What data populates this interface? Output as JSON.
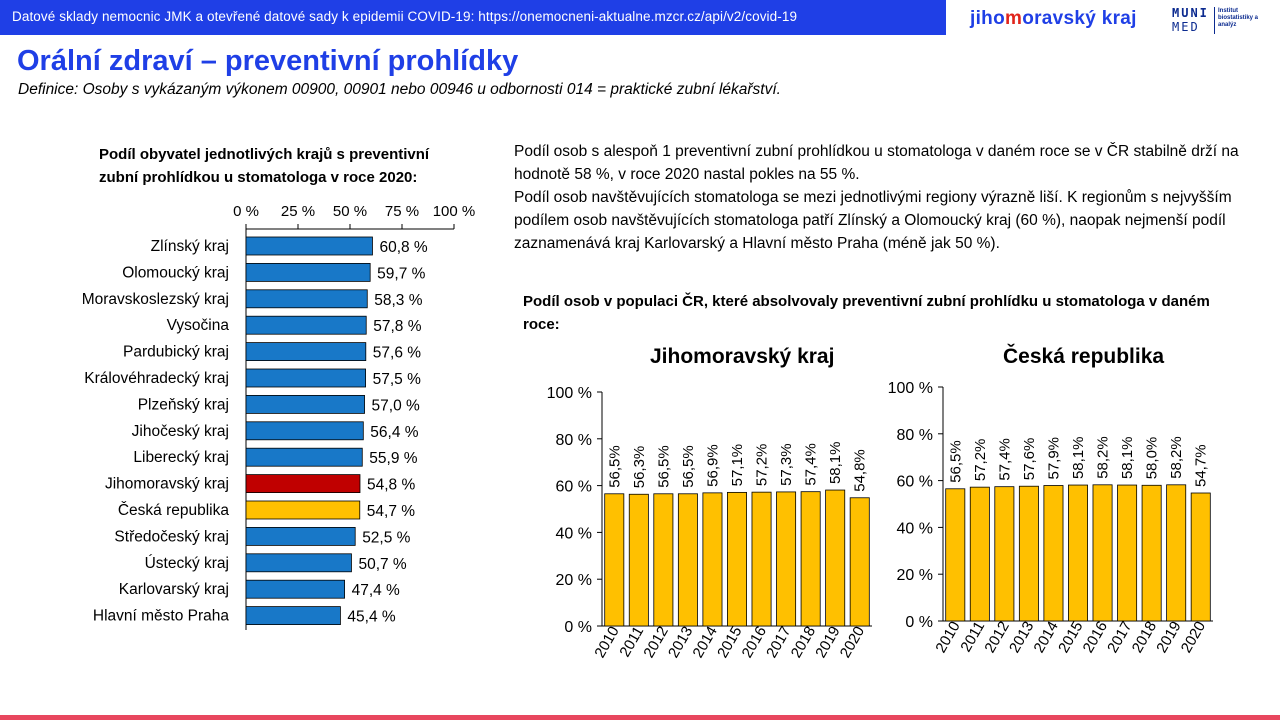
{
  "header": {
    "source": "Datové sklady nemocnic JMK a otevřené datové sady k epidemii COVID-19: https://onemocneni-aktualne.mzcr.cz/api/v2/covid-19",
    "logo_jmk_pre": "jiho",
    "logo_jmk_accent": "m",
    "logo_jmk_post": "oravský kraj",
    "logo_muni_1": "MUNI",
    "logo_muni_2": "MED",
    "logo_muni_inst": "Institut biostatistiky a analýz"
  },
  "title": "Orální zdraví – preventivní prohlídky",
  "definition": "Definice: Osoby s vykázaným výkonem 00900, 00901 nebo 00946 u odbornosti 014 = praktické zubní lékařství.",
  "description": [
    "Podíl osob s alespoň 1 preventivní zubní prohlídkou u stomatologa v daném roce se v ČR stabilně drží na hodnotě 58 %, v roce 2020 nastal pokles na 55 %.",
    "Podíl osob navštěvujících stomatologa se mezi jednotlivými regiony výrazně liší. K regionům s nejvyšším podílem osob navštěvujících stomatologa patří Zlínský a Olomoucký kraj (60 %), naopak nejmenší podíl zaznamenává kraj Karlovarský a Hlavní město Praha (méně jak 50 %)."
  ],
  "colors": {
    "brand_blue": "#1f3fe6",
    "bar_blue": "#1878c8",
    "bar_red": "#c00000",
    "bar_yellow": "#ffc000",
    "accent_pink": "#e8475e"
  },
  "chart_data": [
    {
      "type": "bar",
      "orientation": "horizontal",
      "title": "Podíl obyvatel jednotlivých krajů s preventivní zubní prohlídkou u stomatologa v roce 2020:",
      "xlim": [
        0,
        100
      ],
      "x_ticks": [
        "0 %",
        "25 %",
        "50 %",
        "75 %",
        "100 %"
      ],
      "categories": [
        "Zlínský kraj",
        "Olomoucký kraj",
        "Moravskoslezský kraj",
        "Vysočina",
        "Pardubický kraj",
        "Královéhradecký kraj",
        "Plzeňský kraj",
        "Jihočeský kraj",
        "Liberecký kraj",
        "Jihomoravský kraj",
        "Česká republika",
        "Středočeský kraj",
        "Ústecký kraj",
        "Karlovarský kraj",
        "Hlavní město Praha"
      ],
      "values": [
        60.8,
        59.7,
        58.3,
        57.8,
        57.6,
        57.5,
        57.0,
        56.4,
        55.9,
        54.8,
        54.7,
        52.5,
        50.7,
        47.4,
        45.4
      ],
      "labels": [
        "60,8 %",
        "59,7 %",
        "58,3 %",
        "57,8 %",
        "57,6 %",
        "57,5 %",
        "57,0 %",
        "56,4 %",
        "55,9 %",
        "54,8 %",
        "54,7 %",
        "52,5 %",
        "50,7 %",
        "47,4 %",
        "45,4 %"
      ],
      "highlight": {
        "Jihomoravský kraj": "#c00000",
        "Česká republika": "#ffc000"
      },
      "grid": false
    },
    {
      "type": "bar",
      "title": "Jihomoravský kraj",
      "group_title": "Podíl osob v populaci ČR, které absolvovaly preventivní zubní prohlídku u stomatologa v daném roce:",
      "categories": [
        "2010",
        "2011",
        "2012",
        "2013",
        "2014",
        "2015",
        "2016",
        "2017",
        "2018",
        "2019",
        "2020"
      ],
      "values": [
        56.5,
        56.3,
        56.5,
        56.5,
        56.9,
        57.1,
        57.2,
        57.3,
        57.4,
        58.1,
        54.8
      ],
      "labels": [
        "56,5%",
        "56,3%",
        "56,5%",
        "56,5%",
        "56,9%",
        "57,1%",
        "57,2%",
        "57,3%",
        "57,4%",
        "58,1%",
        "54,8%"
      ],
      "ylim": [
        0,
        100
      ],
      "y_ticks": [
        "0 %",
        "20 %",
        "40 %",
        "60 %",
        "80 %",
        "100 %"
      ],
      "grid": false
    },
    {
      "type": "bar",
      "title": "Česká republika",
      "categories": [
        "2010",
        "2011",
        "2012",
        "2013",
        "2014",
        "2015",
        "2016",
        "2017",
        "2018",
        "2019",
        "2020"
      ],
      "values": [
        56.5,
        57.2,
        57.4,
        57.6,
        57.9,
        58.1,
        58.2,
        58.1,
        58.0,
        58.2,
        54.7
      ],
      "labels": [
        "56,5%",
        "57,2%",
        "57,4%",
        "57,6%",
        "57,9%",
        "58,1%",
        "58,2%",
        "58,1%",
        "58,0%",
        "58,2%",
        "54,7%"
      ],
      "ylim": [
        0,
        100
      ],
      "y_ticks": [
        "0 %",
        "20 %",
        "40 %",
        "60 %",
        "80 %",
        "100 %"
      ],
      "grid": false
    }
  ]
}
